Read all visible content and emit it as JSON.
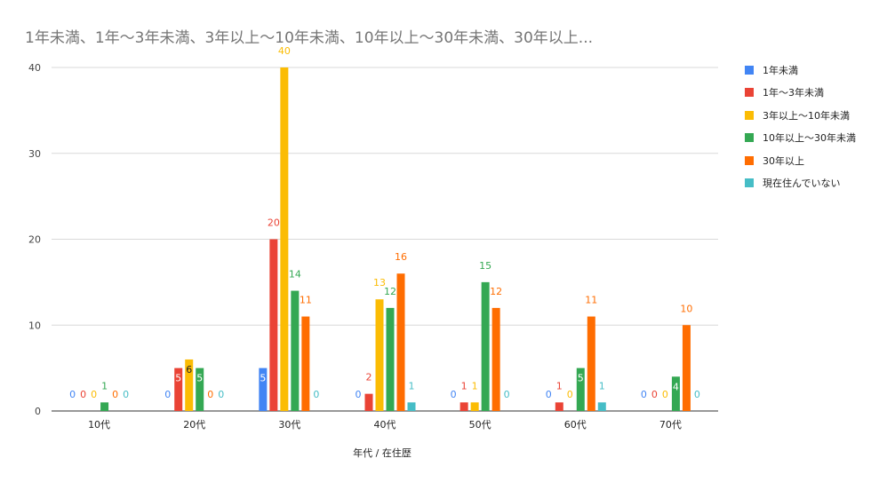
{
  "chart_data": {
    "type": "bar",
    "title": "1年未満、1年～3年未満、3年以上～10年未満、10年以上～30年未満、30年以上...",
    "xlabel": "年代 / 在住歴",
    "ylabel": "",
    "ylim": [
      0,
      40
    ],
    "yticks": [
      0,
      10,
      20,
      30,
      40
    ],
    "grid": true,
    "legend_position": "right",
    "categories": [
      "10代",
      "20代",
      "30代",
      "40代",
      "50代",
      "60代",
      "70代"
    ],
    "series": [
      {
        "name": "1年未満",
        "color": "#4285F4",
        "values": [
          0,
          0,
          5,
          0,
          0,
          0,
          0
        ]
      },
      {
        "name": "1年～3年未満",
        "color": "#EA4335",
        "values": [
          0,
          5,
          20,
          2,
          1,
          1,
          0
        ]
      },
      {
        "name": "3年以上～10年未満",
        "color": "#FBBC04",
        "values": [
          0,
          6,
          40,
          13,
          1,
          0,
          0
        ]
      },
      {
        "name": "10年以上～30年未満",
        "color": "#34A853",
        "values": [
          1,
          5,
          14,
          12,
          15,
          5,
          4
        ]
      },
      {
        "name": "30年以上",
        "color": "#FF6D01",
        "values": [
          0,
          0,
          11,
          16,
          12,
          11,
          10
        ]
      },
      {
        "name": "現在住んでいない",
        "color": "#46BDC6",
        "values": [
          0,
          0,
          0,
          1,
          0,
          1,
          0
        ]
      }
    ]
  }
}
